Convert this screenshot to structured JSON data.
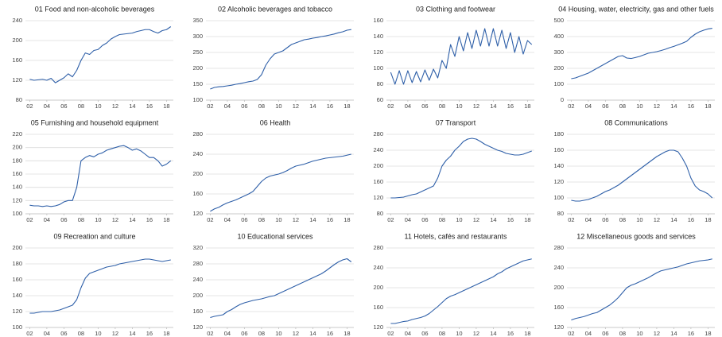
{
  "chart_data": [
    {
      "type": "line",
      "title": "01 Food and non-alcoholic beverages",
      "color": "#2e5fa8",
      "grid": true,
      "x": [
        2,
        2.5,
        3,
        3.5,
        4,
        4.5,
        5,
        5.5,
        6,
        6.5,
        7,
        7.5,
        8,
        8.5,
        9,
        9.5,
        10,
        10.5,
        11,
        11.5,
        12,
        12.5,
        13,
        13.5,
        14,
        14.5,
        15,
        15.5,
        16,
        16.5,
        17,
        17.5,
        18,
        18.5
      ],
      "values": [
        122,
        120,
        121,
        122,
        120,
        124,
        115,
        120,
        125,
        133,
        127,
        140,
        160,
        175,
        172,
        180,
        182,
        190,
        195,
        203,
        208,
        212,
        213,
        214,
        215,
        218,
        220,
        222,
        222,
        218,
        215,
        220,
        222,
        228
      ],
      "xlim": [
        1.5,
        18.8
      ],
      "xticks": [
        {
          "value": 2,
          "label": "02"
        },
        {
          "value": 4,
          "label": "04"
        },
        {
          "value": 6,
          "label": "06"
        },
        {
          "value": 8,
          "label": "08"
        },
        10,
        12,
        14,
        16,
        18
      ],
      "ylim": [
        80,
        240
      ],
      "yticks": [
        80,
        120,
        160,
        200,
        240
      ]
    },
    {
      "type": "line",
      "title": "02 Alcoholic beverages and tobacco",
      "color": "#2e5fa8",
      "grid": true,
      "x": [
        2,
        2.5,
        3,
        3.5,
        4,
        4.5,
        5,
        5.5,
        6,
        6.5,
        7,
        7.5,
        8,
        8.5,
        9,
        9.5,
        10,
        10.5,
        11,
        11.5,
        12,
        12.5,
        13,
        13.5,
        14,
        14.5,
        15,
        15.5,
        16,
        16.5,
        17,
        17.5,
        18,
        18.5
      ],
      "values": [
        135,
        140,
        142,
        143,
        145,
        147,
        150,
        152,
        155,
        158,
        160,
        165,
        180,
        210,
        230,
        245,
        250,
        255,
        265,
        275,
        280,
        285,
        290,
        292,
        295,
        297,
        300,
        302,
        305,
        308,
        312,
        315,
        320,
        322
      ],
      "xlim": [
        1.5,
        18.8
      ],
      "xticks": [
        {
          "value": 2,
          "label": "02"
        },
        {
          "value": 4,
          "label": "04"
        },
        {
          "value": 6,
          "label": "06"
        },
        {
          "value": 8,
          "label": "08"
        },
        10,
        12,
        14,
        16,
        18
      ],
      "ylim": [
        100,
        350
      ],
      "yticks": [
        100,
        150,
        200,
        250,
        300,
        350
      ]
    },
    {
      "type": "line",
      "title": "03 Clothing and footwear",
      "color": "#2e5fa8",
      "grid": true,
      "x": [
        2,
        2.5,
        3,
        3.5,
        4,
        4.5,
        5,
        5.5,
        6,
        6.5,
        7,
        7.5,
        8,
        8.5,
        9,
        9.5,
        10,
        10.5,
        11,
        11.5,
        12,
        12.5,
        13,
        13.5,
        14,
        14.5,
        15,
        15.5,
        16,
        16.5,
        17,
        17.5,
        18,
        18.5
      ],
      "values": [
        95,
        80,
        97,
        80,
        97,
        82,
        96,
        83,
        98,
        85,
        99,
        88,
        110,
        100,
        130,
        115,
        140,
        122,
        145,
        125,
        148,
        128,
        150,
        128,
        150,
        128,
        148,
        125,
        145,
        120,
        140,
        118,
        135,
        130
      ],
      "xlim": [
        1.5,
        18.8
      ],
      "xticks": [
        {
          "value": 2,
          "label": "02"
        },
        {
          "value": 4,
          "label": "04"
        },
        {
          "value": 6,
          "label": "06"
        },
        {
          "value": 8,
          "label": "08"
        },
        10,
        12,
        14,
        16,
        18
      ],
      "ylim": [
        60,
        160
      ],
      "yticks": [
        60,
        80,
        100,
        120,
        140,
        160
      ]
    },
    {
      "type": "line",
      "title": "04 Housing, water, electricity, gas and other fuels",
      "color": "#2e5fa8",
      "grid": true,
      "x": [
        2,
        2.5,
        3,
        3.5,
        4,
        4.5,
        5,
        5.5,
        6,
        6.5,
        7,
        7.5,
        8,
        8.5,
        9,
        9.5,
        10,
        10.5,
        11,
        11.5,
        12,
        12.5,
        13,
        13.5,
        14,
        14.5,
        15,
        15.5,
        16,
        16.5,
        17,
        17.5,
        18,
        18.5
      ],
      "values": [
        135,
        140,
        150,
        160,
        170,
        185,
        200,
        215,
        230,
        245,
        260,
        275,
        280,
        265,
        262,
        268,
        275,
        285,
        295,
        300,
        305,
        312,
        320,
        330,
        338,
        348,
        358,
        370,
        395,
        415,
        430,
        440,
        448,
        452
      ],
      "xlim": [
        1.5,
        18.8
      ],
      "xticks": [
        {
          "value": 2,
          "label": "02"
        },
        {
          "value": 4,
          "label": "04"
        },
        {
          "value": 6,
          "label": "06"
        },
        {
          "value": 8,
          "label": "08"
        },
        10,
        12,
        14,
        16,
        18
      ],
      "ylim": [
        0,
        500
      ],
      "yticks": [
        0,
        100,
        200,
        300,
        400,
        500
      ]
    },
    {
      "type": "line",
      "title": "05 Furnishing and household equipment",
      "color": "#2e5fa8",
      "grid": true,
      "x": [
        2,
        2.5,
        3,
        3.5,
        4,
        4.5,
        5,
        5.5,
        6,
        6.5,
        7,
        7.5,
        8,
        8.5,
        9,
        9.5,
        10,
        10.5,
        11,
        11.5,
        12,
        12.5,
        13,
        13.5,
        14,
        14.5,
        15,
        15.5,
        16,
        16.5,
        17,
        17.5,
        18,
        18.5
      ],
      "values": [
        113,
        112,
        112,
        111,
        112,
        111,
        112,
        114,
        118,
        120,
        120,
        140,
        180,
        185,
        188,
        186,
        190,
        192,
        196,
        198,
        200,
        202,
        203,
        200,
        196,
        198,
        195,
        190,
        185,
        185,
        180,
        172,
        175,
        180
      ],
      "xlim": [
        1.5,
        18.8
      ],
      "xticks": [
        {
          "value": 2,
          "label": "02"
        },
        {
          "value": 4,
          "label": "04"
        },
        {
          "value": 6,
          "label": "06"
        },
        {
          "value": 8,
          "label": "08"
        },
        10,
        12,
        14,
        16,
        18
      ],
      "ylim": [
        100,
        220
      ],
      "yticks": [
        100,
        120,
        140,
        160,
        180,
        200,
        220
      ]
    },
    {
      "type": "line",
      "title": "06 Health",
      "color": "#2e5fa8",
      "grid": true,
      "x": [
        2,
        2.5,
        3,
        3.5,
        4,
        4.5,
        5,
        5.5,
        6,
        6.5,
        7,
        7.5,
        8,
        8.5,
        9,
        9.5,
        10,
        10.5,
        11,
        11.5,
        12,
        12.5,
        13,
        13.5,
        14,
        14.5,
        15,
        15.5,
        16,
        16.5,
        17,
        17.5,
        18,
        18.5
      ],
      "values": [
        125,
        130,
        133,
        138,
        142,
        145,
        148,
        152,
        156,
        160,
        165,
        175,
        185,
        192,
        196,
        198,
        200,
        203,
        207,
        212,
        216,
        218,
        220,
        223,
        226,
        228,
        230,
        232,
        233,
        234,
        235,
        236,
        238,
        240
      ],
      "xlim": [
        1.5,
        18.8
      ],
      "xticks": [
        {
          "value": 2,
          "label": "02"
        },
        {
          "value": 4,
          "label": "04"
        },
        {
          "value": 6,
          "label": "06"
        },
        {
          "value": 8,
          "label": "08"
        },
        10,
        12,
        14,
        16,
        18
      ],
      "ylim": [
        120,
        280
      ],
      "yticks": [
        120,
        160,
        200,
        240,
        280
      ]
    },
    {
      "type": "line",
      "title": "07 Transport",
      "color": "#2e5fa8",
      "grid": true,
      "x": [
        2,
        2.5,
        3,
        3.5,
        4,
        4.5,
        5,
        5.5,
        6,
        6.5,
        7,
        7.5,
        8,
        8.5,
        9,
        9.5,
        10,
        10.5,
        11,
        11.5,
        12,
        12.5,
        13,
        13.5,
        14,
        14.5,
        15,
        15.5,
        16,
        16.5,
        17,
        17.5,
        18,
        18.5
      ],
      "values": [
        120,
        120,
        121,
        122,
        125,
        128,
        130,
        135,
        140,
        145,
        150,
        170,
        200,
        215,
        225,
        240,
        250,
        262,
        268,
        270,
        268,
        262,
        255,
        250,
        245,
        240,
        237,
        232,
        230,
        228,
        228,
        230,
        234,
        238
      ],
      "xlim": [
        1.5,
        18.8
      ],
      "xticks": [
        {
          "value": 2,
          "label": "02"
        },
        {
          "value": 4,
          "label": "04"
        },
        {
          "value": 6,
          "label": "06"
        },
        {
          "value": 8,
          "label": "08"
        },
        10,
        12,
        14,
        16,
        18
      ],
      "ylim": [
        80,
        280
      ],
      "yticks": [
        80,
        120,
        160,
        200,
        240,
        280
      ]
    },
    {
      "type": "line",
      "title": "08 Communications",
      "color": "#2e5fa8",
      "grid": true,
      "x": [
        2,
        2.5,
        3,
        3.5,
        4,
        4.5,
        5,
        5.5,
        6,
        6.5,
        7,
        7.5,
        8,
        8.5,
        9,
        9.5,
        10,
        10.5,
        11,
        11.5,
        12,
        12.5,
        13,
        13.5,
        14,
        14.5,
        15,
        15.5,
        16,
        16.5,
        17,
        17.5,
        18,
        18.5
      ],
      "values": [
        97,
        96,
        96,
        97,
        98,
        100,
        102,
        105,
        108,
        110,
        113,
        116,
        120,
        124,
        128,
        132,
        136,
        140,
        144,
        148,
        152,
        155,
        158,
        160,
        160,
        158,
        150,
        140,
        125,
        115,
        110,
        108,
        105,
        100
      ],
      "xlim": [
        1.5,
        18.8
      ],
      "xticks": [
        {
          "value": 2,
          "label": "02"
        },
        {
          "value": 4,
          "label": "04"
        },
        {
          "value": 6,
          "label": "06"
        },
        {
          "value": 8,
          "label": "08"
        },
        10,
        12,
        14,
        16,
        18
      ],
      "ylim": [
        80,
        180
      ],
      "yticks": [
        80,
        100,
        120,
        140,
        160,
        180
      ]
    },
    {
      "type": "line",
      "title": "09 Recreation and culture",
      "color": "#2e5fa8",
      "grid": true,
      "x": [
        2,
        2.5,
        3,
        3.5,
        4,
        4.5,
        5,
        5.5,
        6,
        6.5,
        7,
        7.5,
        8,
        8.5,
        9,
        9.5,
        10,
        10.5,
        11,
        11.5,
        12,
        12.5,
        13,
        13.5,
        14,
        14.5,
        15,
        15.5,
        16,
        16.5,
        17,
        17.5,
        18,
        18.5
      ],
      "values": [
        118,
        118,
        119,
        120,
        120,
        120,
        121,
        122,
        124,
        126,
        128,
        135,
        150,
        162,
        168,
        170,
        172,
        174,
        176,
        177,
        178,
        180,
        181,
        182,
        183,
        184,
        185,
        186,
        186,
        185,
        184,
        183,
        184,
        185
      ],
      "xlim": [
        1.5,
        18.8
      ],
      "xticks": [
        {
          "value": 2,
          "label": "02"
        },
        {
          "value": 4,
          "label": "04"
        },
        {
          "value": 6,
          "label": "06"
        },
        {
          "value": 8,
          "label": "08"
        },
        10,
        12,
        14,
        16,
        18
      ],
      "ylim": [
        100,
        200
      ],
      "yticks": [
        100,
        120,
        140,
        160,
        180,
        200
      ]
    },
    {
      "type": "line",
      "title": "10 Educational services",
      "color": "#2e5fa8",
      "grid": true,
      "x": [
        2,
        2.5,
        3,
        3.5,
        4,
        4.5,
        5,
        5.5,
        6,
        6.5,
        7,
        7.5,
        8,
        8.5,
        9,
        9.5,
        10,
        10.5,
        11,
        11.5,
        12,
        12.5,
        13,
        13.5,
        14,
        14.5,
        15,
        15.5,
        16,
        16.5,
        17,
        17.5,
        18,
        18.5
      ],
      "values": [
        145,
        148,
        150,
        152,
        160,
        165,
        172,
        178,
        182,
        185,
        188,
        190,
        192,
        195,
        198,
        200,
        205,
        210,
        215,
        220,
        225,
        230,
        235,
        240,
        245,
        250,
        255,
        262,
        270,
        278,
        285,
        290,
        293,
        285
      ],
      "xlim": [
        1.5,
        18.8
      ],
      "xticks": [
        {
          "value": 2,
          "label": "02"
        },
        {
          "value": 4,
          "label": "04"
        },
        {
          "value": 6,
          "label": "06"
        },
        {
          "value": 8,
          "label": "08"
        },
        10,
        12,
        14,
        16,
        18
      ],
      "ylim": [
        120,
        320
      ],
      "yticks": [
        120,
        160,
        200,
        240,
        280,
        320
      ]
    },
    {
      "type": "line",
      "title": "11 Hotels, cafés and restaurants",
      "color": "#2e5fa8",
      "grid": true,
      "x": [
        2,
        2.5,
        3,
        3.5,
        4,
        4.5,
        5,
        5.5,
        6,
        6.5,
        7,
        7.5,
        8,
        8.5,
        9,
        9.5,
        10,
        10.5,
        11,
        11.5,
        12,
        12.5,
        13,
        13.5,
        14,
        14.5,
        15,
        15.5,
        16,
        16.5,
        17,
        17.5,
        18,
        18.5
      ],
      "values": [
        128,
        128,
        130,
        132,
        133,
        136,
        138,
        140,
        143,
        148,
        155,
        162,
        170,
        178,
        183,
        186,
        190,
        194,
        198,
        202,
        206,
        210,
        214,
        218,
        222,
        228,
        232,
        238,
        242,
        246,
        250,
        254,
        256,
        258
      ],
      "xlim": [
        1.5,
        18.8
      ],
      "xticks": [
        {
          "value": 2,
          "label": "02"
        },
        {
          "value": 4,
          "label": "04"
        },
        {
          "value": 6,
          "label": "06"
        },
        {
          "value": 8,
          "label": "08"
        },
        10,
        12,
        14,
        16,
        18
      ],
      "ylim": [
        120,
        280
      ],
      "yticks": [
        120,
        160,
        200,
        240,
        280
      ]
    },
    {
      "type": "line",
      "title": "12 Miscellaneous goods and services",
      "color": "#2e5fa8",
      "grid": true,
      "x": [
        2,
        2.5,
        3,
        3.5,
        4,
        4.5,
        5,
        5.5,
        6,
        6.5,
        7,
        7.5,
        8,
        8.5,
        9,
        9.5,
        10,
        10.5,
        11,
        11.5,
        12,
        12.5,
        13,
        13.5,
        14,
        14.5,
        15,
        15.5,
        16,
        16.5,
        17,
        17.5,
        18,
        18.5
      ],
      "values": [
        135,
        138,
        140,
        142,
        145,
        148,
        150,
        155,
        160,
        165,
        172,
        180,
        190,
        200,
        205,
        208,
        212,
        216,
        220,
        225,
        230,
        234,
        236,
        238,
        240,
        242,
        245,
        248,
        250,
        252,
        254,
        255,
        256,
        258
      ],
      "xlim": [
        1.5,
        18.8
      ],
      "xticks": [
        {
          "value": 2,
          "label": "02"
        },
        {
          "value": 4,
          "label": "04"
        },
        {
          "value": 6,
          "label": "06"
        },
        {
          "value": 8,
          "label": "08"
        },
        10,
        12,
        14,
        16,
        18
      ],
      "ylim": [
        120,
        280
      ],
      "yticks": [
        120,
        160,
        200,
        240,
        280
      ]
    }
  ]
}
